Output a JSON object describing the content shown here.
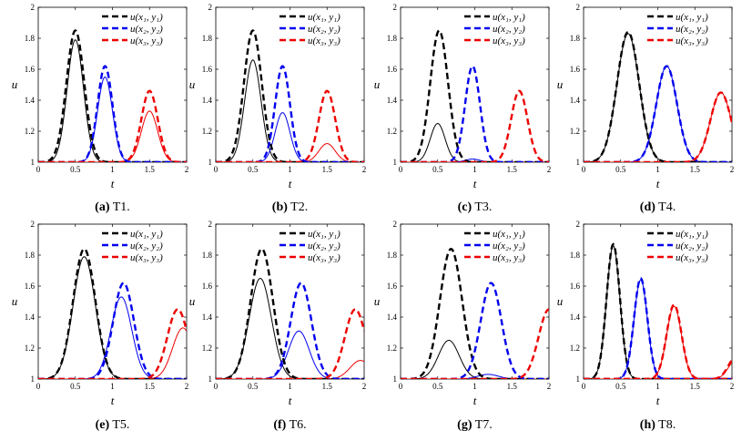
{
  "figure": {
    "legend_labels": [
      "u(x₁, y₁)",
      "u(x₂, y₂)",
      "u(x₃, y₃)"
    ],
    "colors": {
      "series1": "#000000",
      "series2": "#0000ee",
      "series3": "#ee0000"
    }
  },
  "chart_data": [
    {
      "id": "a",
      "caption_letter": "(a)",
      "caption_text": " T1.",
      "type": "line",
      "xlabel": "t",
      "ylabel": "u",
      "xlim": [
        0,
        2
      ],
      "ylim": [
        1,
        2
      ],
      "xticks": [
        "0",
        "0.5",
        "1",
        "1.5",
        "2"
      ],
      "yticks": [
        "1",
        "1.2",
        "1.4",
        "1.6",
        "1.8",
        "2"
      ],
      "reference": [
        {
          "center": 0.5,
          "peak": 1.85,
          "width": 0.12
        },
        {
          "center": 0.9,
          "peak": 1.62,
          "width": 0.1
        },
        {
          "center": 1.5,
          "peak": 1.46,
          "width": 0.11
        }
      ],
      "approx": [
        {
          "center": 0.5,
          "peak": 1.79,
          "width": 0.11
        },
        {
          "center": 0.9,
          "peak": 1.55,
          "width": 0.1
        },
        {
          "center": 1.5,
          "peak": 1.33,
          "width": 0.11
        }
      ]
    },
    {
      "id": "b",
      "caption_letter": "(b)",
      "caption_text": " T2.",
      "type": "line",
      "xlabel": "t",
      "ylabel": "u",
      "xlim": [
        0,
        2
      ],
      "ylim": [
        1,
        2
      ],
      "xticks": [
        "0",
        "0.5",
        "1",
        "1.5",
        "2"
      ],
      "yticks": [
        "1",
        "1.2",
        "1.4",
        "1.6",
        "1.8",
        "2"
      ],
      "reference": [
        {
          "center": 0.5,
          "peak": 1.85,
          "width": 0.12
        },
        {
          "center": 0.9,
          "peak": 1.62,
          "width": 0.1
        },
        {
          "center": 1.5,
          "peak": 1.46,
          "width": 0.11
        }
      ],
      "approx": [
        {
          "center": 0.5,
          "peak": 1.66,
          "width": 0.11
        },
        {
          "center": 0.9,
          "peak": 1.32,
          "width": 0.1
        },
        {
          "center": 1.5,
          "peak": 1.12,
          "width": 0.11
        }
      ]
    },
    {
      "id": "c",
      "caption_letter": "(c)",
      "caption_text": " T3.",
      "type": "line",
      "xlabel": "t",
      "ylabel": "u",
      "xlim": [
        0,
        2
      ],
      "ylim": [
        1,
        2
      ],
      "xticks": [
        "0",
        "0.5",
        "1",
        "1.5",
        "2"
      ],
      "yticks": [
        "1",
        "1.2",
        "1.4",
        "1.6",
        "1.8",
        "2"
      ],
      "reference": [
        {
          "center": 0.52,
          "peak": 1.85,
          "width": 0.12
        },
        {
          "center": 0.97,
          "peak": 1.62,
          "width": 0.1
        },
        {
          "center": 1.6,
          "peak": 1.46,
          "width": 0.11
        }
      ],
      "approx": [
        {
          "center": 0.5,
          "peak": 1.25,
          "width": 0.1
        },
        {
          "center": 0.97,
          "peak": 1.02,
          "width": 0.1
        },
        {
          "center": 1.6,
          "peak": 1.0,
          "width": 0.11
        }
      ]
    },
    {
      "id": "d",
      "caption_letter": "(d)",
      "caption_text": " T4.",
      "type": "line",
      "xlabel": "t",
      "ylabel": "u",
      "xlim": [
        0,
        2
      ],
      "ylim": [
        1,
        2
      ],
      "xticks": [
        "0",
        "0.5",
        "1",
        "1.5",
        "2"
      ],
      "yticks": [
        "1",
        "1.2",
        "1.4",
        "1.6",
        "1.8",
        "2"
      ],
      "reference": [
        {
          "center": 0.6,
          "peak": 1.84,
          "width": 0.15
        },
        {
          "center": 1.12,
          "peak": 1.62,
          "width": 0.14
        },
        {
          "center": 1.85,
          "peak": 1.45,
          "width": 0.14
        }
      ],
      "approx": [
        {
          "center": 0.6,
          "peak": 1.83,
          "width": 0.15
        },
        {
          "center": 1.12,
          "peak": 1.62,
          "width": 0.14
        },
        {
          "center": 1.85,
          "peak": 1.45,
          "width": 0.14
        }
      ]
    },
    {
      "id": "e",
      "caption_letter": "(e)",
      "caption_text": " T5.",
      "type": "line",
      "xlabel": "t",
      "ylabel": "u",
      "xlim": [
        0,
        2
      ],
      "ylim": [
        1,
        2
      ],
      "xticks": [
        "0",
        "0.5",
        "1",
        "1.5",
        "2"
      ],
      "yticks": [
        "1",
        "1.2",
        "1.4",
        "1.6",
        "1.8",
        "2"
      ],
      "reference": [
        {
          "center": 0.62,
          "peak": 1.84,
          "width": 0.15
        },
        {
          "center": 1.15,
          "peak": 1.62,
          "width": 0.14
        },
        {
          "center": 1.88,
          "peak": 1.45,
          "width": 0.14
        }
      ],
      "approx": [
        {
          "center": 0.62,
          "peak": 1.79,
          "width": 0.15
        },
        {
          "center": 1.12,
          "peak": 1.53,
          "width": 0.14
        },
        {
          "center": 1.95,
          "peak": 1.33,
          "width": 0.14
        }
      ]
    },
    {
      "id": "f",
      "caption_letter": "(f)",
      "caption_text": " T6.",
      "type": "line",
      "xlabel": "t",
      "ylabel": "u",
      "xlim": [
        0,
        2
      ],
      "ylim": [
        1,
        2
      ],
      "xticks": [
        "0",
        "0.5",
        "1",
        "1.5",
        "2"
      ],
      "yticks": [
        "1",
        "1.2",
        "1.4",
        "1.6",
        "1.8",
        "2"
      ],
      "reference": [
        {
          "center": 0.62,
          "peak": 1.84,
          "width": 0.15
        },
        {
          "center": 1.15,
          "peak": 1.62,
          "width": 0.14
        },
        {
          "center": 1.88,
          "peak": 1.45,
          "width": 0.14
        }
      ],
      "approx": [
        {
          "center": 0.6,
          "peak": 1.65,
          "width": 0.15
        },
        {
          "center": 1.12,
          "peak": 1.31,
          "width": 0.14
        },
        {
          "center": 1.95,
          "peak": 1.12,
          "width": 0.14
        }
      ]
    },
    {
      "id": "g",
      "caption_letter": "(g)",
      "caption_text": " T7.",
      "type": "line",
      "xlabel": "t",
      "ylabel": "u",
      "xlim": [
        0,
        2
      ],
      "ylim": [
        1,
        2
      ],
      "xticks": [
        "0",
        "0.5",
        "1",
        "1.5",
        "2"
      ],
      "yticks": [
        "1",
        "1.2",
        "1.4",
        "1.6",
        "1.8",
        "2"
      ],
      "reference": [
        {
          "center": 0.68,
          "peak": 1.84,
          "width": 0.15
        },
        {
          "center": 1.22,
          "peak": 1.62,
          "width": 0.14
        },
        {
          "center": 2.0,
          "peak": 1.45,
          "width": 0.14
        }
      ],
      "approx": [
        {
          "center": 0.65,
          "peak": 1.25,
          "width": 0.14
        },
        {
          "center": 1.18,
          "peak": 1.03,
          "width": 0.14
        },
        {
          "center": 2.0,
          "peak": 1.0,
          "width": 0.14
        }
      ]
    },
    {
      "id": "h",
      "caption_letter": "(h)",
      "caption_text": " T8.",
      "type": "line",
      "xlabel": "t",
      "ylabel": "u",
      "xlim": [
        0,
        2
      ],
      "ylim": [
        1,
        2
      ],
      "xticks": [
        "0",
        "0.5",
        "1",
        "1.5",
        "2"
      ],
      "yticks": [
        "1",
        "1.2",
        "1.4",
        "1.6",
        "1.8",
        "2"
      ],
      "reference": [
        {
          "center": 0.4,
          "peak": 1.87,
          "width": 0.09
        },
        {
          "center": 0.77,
          "peak": 1.65,
          "width": 0.09
        },
        {
          "center": 1.22,
          "peak": 1.48,
          "width": 0.1
        },
        {
          "center": 2.05,
          "peak": 1.14,
          "width": 0.1
        }
      ],
      "approx": [
        {
          "center": 0.4,
          "peak": 1.86,
          "width": 0.09
        },
        {
          "center": 0.77,
          "peak": 1.64,
          "width": 0.09
        },
        {
          "center": 1.22,
          "peak": 1.47,
          "width": 0.1
        },
        {
          "center": 2.05,
          "peak": 1.12,
          "width": 0.1
        }
      ]
    }
  ]
}
